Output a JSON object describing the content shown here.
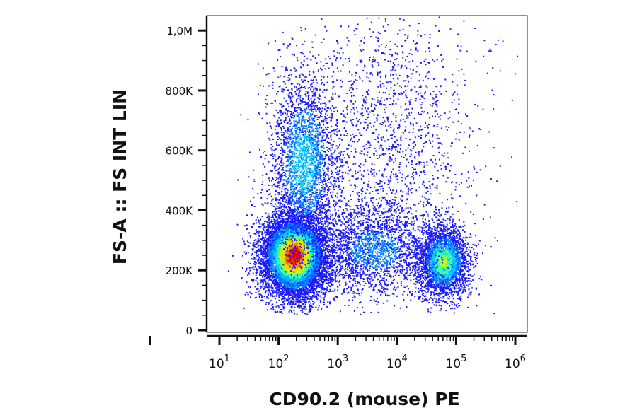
{
  "chart_data": {
    "type": "scatter",
    "subtype": "flow-cytometry-density-dot-plot",
    "title": "",
    "xlabel": "CD90.2 (mouse) PE",
    "ylabel": "FS-A :: FS INT LIN",
    "x_scale": "log",
    "xlim": [
      1,
      1000000
    ],
    "ylim": [
      0,
      1050000
    ],
    "x_ticks": [
      {
        "value": 10,
        "base": "10",
        "exp": "1"
      },
      {
        "value": 100,
        "base": "10",
        "exp": "2"
      },
      {
        "value": 1000,
        "base": "10",
        "exp": "3"
      },
      {
        "value": 10000,
        "base": "10",
        "exp": "4"
      },
      {
        "value": 100000,
        "base": "10",
        "exp": "5"
      },
      {
        "value": 1000000,
        "base": "10",
        "exp": "6"
      }
    ],
    "y_ticks": [
      {
        "value": 0,
        "label": "0"
      },
      {
        "value": 200000,
        "label": "200K"
      },
      {
        "value": 400000,
        "label": "400K"
      },
      {
        "value": 600000,
        "label": "600K"
      },
      {
        "value": 800000,
        "label": "800K"
      },
      {
        "value": 1000000,
        "label": "1,0M"
      }
    ],
    "grid": false,
    "legend": "none",
    "density_colors": [
      "#1a1aff",
      "#0080ff",
      "#00c8ff",
      "#3cffa0",
      "#c8ff00",
      "#ffd000",
      "#ff7a00",
      "#e60000"
    ],
    "populations": [
      {
        "name": "",
        "center_x": 180,
        "center_y": 250000,
        "spread_log_x": 0.28,
        "spread_y": 70000,
        "events": 9000,
        "peak_density": 1.0
      },
      {
        "name": "",
        "center_x": 260,
        "center_y": 560000,
        "spread_log_x": 0.3,
        "spread_y": 160000,
        "events": 2600,
        "peak_density": 0.35
      },
      {
        "name": "",
        "center_x": 60000,
        "center_y": 230000,
        "spread_log_x": 0.22,
        "spread_y": 60000,
        "events": 2800,
        "peak_density": 0.55
      },
      {
        "name": "",
        "center_x": 4000,
        "center_y": 270000,
        "spread_log_x": 0.55,
        "spread_y": 80000,
        "events": 2200,
        "peak_density": 0.2
      },
      {
        "name": "",
        "center_x": 8000,
        "center_y": 650000,
        "spread_log_x": 0.7,
        "spread_y": 230000,
        "events": 1500,
        "peak_density": 0.1
      }
    ]
  }
}
